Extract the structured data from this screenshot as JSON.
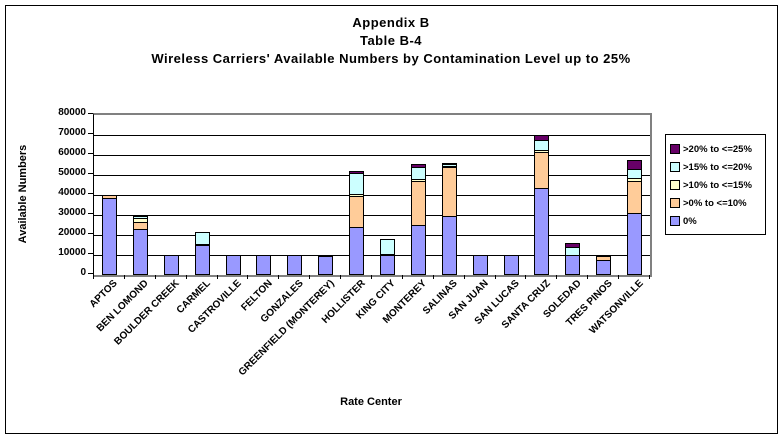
{
  "title": {
    "lines": [
      "Appendix B",
      "Table B-4",
      "Wireless Carriers' Available Numbers by Contamination Level up to 25%"
    ]
  },
  "chart_data": {
    "type": "bar",
    "stacked": true,
    "title": "Appendix B — Table B-4 — Wireless Carriers' Available Numbers by Contamination Level up to 25%",
    "xlabel": "Rate Center",
    "ylabel": "Available Numbers",
    "ylim": [
      0,
      80000
    ],
    "yticks": [
      0,
      10000,
      20000,
      30000,
      40000,
      50000,
      60000,
      70000,
      80000
    ],
    "grid": true,
    "legend_position": "right",
    "categories": [
      "APTOS",
      "BEN LOMOND",
      "BOULDER CREEK",
      "CARMEL",
      "CASTROVILLE",
      "FELTON",
      "GONZALES",
      "GREENFIELD (MONTEREY)",
      "HOLLISTER",
      "KING CITY",
      "MONTEREY",
      "SALINAS",
      "SAN JUAN",
      "SAN LUCAS",
      "SANTA CRUZ",
      "SOLEDAD",
      "TRES PINOS",
      "WATSONVILLE"
    ],
    "series": [
      {
        "name": "0%",
        "color": "#9999FF",
        "values": [
          38500,
          23000,
          10000,
          15000,
          10000,
          10000,
          10000,
          9500,
          24000,
          10000,
          25000,
          29500,
          10000,
          10000,
          43500,
          10000,
          7500,
          31000
        ]
      },
      {
        "name": ">0% to <=10%",
        "color": "#FFCC99",
        "values": [
          2000,
          4000,
          0,
          0,
          0,
          0,
          0,
          0,
          16000,
          0,
          22500,
          25000,
          0,
          0,
          18500,
          0,
          2500,
          16500
        ]
      },
      {
        "name": ">10% to <=15%",
        "color": "#FFFFCC",
        "values": [
          0,
          2500,
          0,
          500,
          0,
          0,
          0,
          0,
          1500,
          500,
          1500,
          500,
          0,
          0,
          1500,
          0,
          0,
          2000
        ]
      },
      {
        "name": ">15% to <=20%",
        "color": "#CCFFFF",
        "values": [
          0,
          1500,
          0,
          6500,
          0,
          0,
          0,
          0,
          11000,
          8000,
          6500,
          1500,
          0,
          0,
          5500,
          4500,
          0,
          5000
        ]
      },
      {
        "name": ">20% to <=25%",
        "color": "#660066",
        "values": [
          0,
          0,
          0,
          0,
          0,
          0,
          0,
          0,
          1500,
          0,
          2000,
          1000,
          0,
          0,
          3000,
          2500,
          0,
          5000
        ]
      }
    ]
  }
}
